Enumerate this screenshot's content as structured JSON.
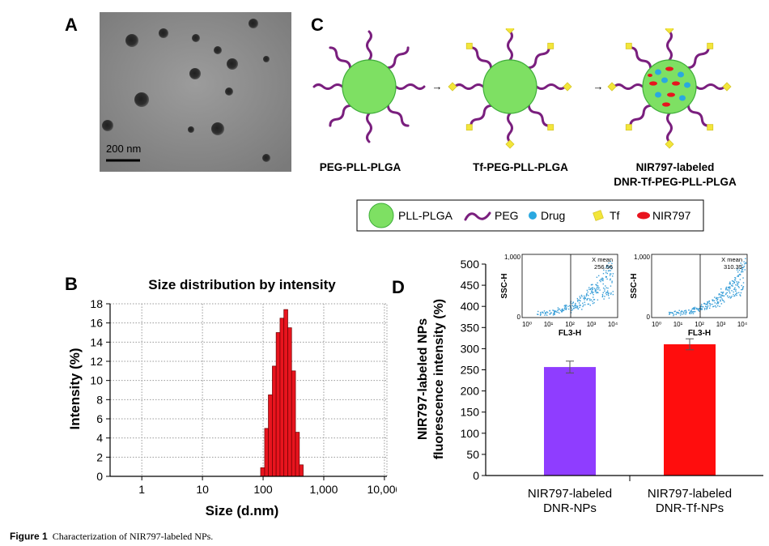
{
  "panels": {
    "a": "A",
    "b": "B",
    "c": "C",
    "d": "D"
  },
  "tem": {
    "scale_label": "200 nm"
  },
  "schematic": {
    "arrow": "→",
    "stages": [
      "PEG-PLL-PLGA",
      "Tf-PEG-PLL-PLGA",
      "NIR797-labeled",
      "DNR-Tf-PEG-PLL-PLGA"
    ],
    "legend": [
      "PLL-PLGA",
      "PEG",
      "Drug",
      "Tf",
      "NIR797"
    ],
    "colors": {
      "core": "#7ee063",
      "peg": "#7a1f7e",
      "drug": "#2aa8e0",
      "tf": "#f3e63a",
      "nir": "#e8141e"
    }
  },
  "chart_data": [
    {
      "type": "bar",
      "title": "Size distribution by intensity",
      "xlabel": "Size (d.nm)",
      "ylabel": "Intensity (%)",
      "xscale": "log",
      "xlim": [
        0.3,
        11000
      ],
      "ylim": [
        0,
        18
      ],
      "xticks": [
        1,
        10,
        100,
        1000,
        10000
      ],
      "xtick_labels": [
        "1",
        "10",
        "100",
        "1,000",
        "10,000"
      ],
      "yticks": [
        0,
        2,
        4,
        6,
        8,
        10,
        12,
        14,
        16,
        18
      ],
      "bins": [
        [
          91,
          106,
          0.9
        ],
        [
          106,
          122,
          5.0
        ],
        [
          122,
          142,
          8.5
        ],
        [
          142,
          164,
          11.5
        ],
        [
          164,
          190,
          15.0
        ],
        [
          190,
          220,
          16.5
        ],
        [
          220,
          255,
          17.4
        ],
        [
          255,
          295,
          15.5
        ],
        [
          295,
          342,
          11.0
        ],
        [
          342,
          396,
          4.6
        ],
        [
          396,
          458,
          1.2
        ]
      ],
      "color": "#e8141e"
    },
    {
      "type": "bar",
      "xlabel": "",
      "ylabel": "NIR797-labeled NPs fluorescence intensity (%)",
      "ylabel_lines": [
        "NIR797-labeled NPs",
        "fluorescence intensity (%)"
      ],
      "categories": [
        [
          "NIR797-labeled",
          "DNR-NPs"
        ],
        [
          "NIR797-labeled",
          "DNR-Tf-NPs"
        ]
      ],
      "values": [
        256.56,
        310.35
      ],
      "errors": [
        14,
        13
      ],
      "colors": [
        "#8f3dff",
        "#ff0d0d"
      ],
      "ylim": [
        0,
        500
      ],
      "yticks": [
        0,
        50,
        100,
        150,
        200,
        250,
        300,
        350,
        400,
        450,
        500
      ],
      "insets": [
        {
          "ylabel": "SSC-H",
          "xlabel": "FL3-H",
          "ytick_top": "1,000",
          "ytick_bottom": "0",
          "xticks": [
            "10⁰",
            "10¹",
            "10²",
            "10³",
            "10⁴"
          ],
          "mean_label": "X mean",
          "mean_value": "256.56"
        },
        {
          "ylabel": "SSC-H",
          "xlabel": "FL3-H",
          "ytick_top": "1,000",
          "ytick_bottom": "0",
          "xticks": [
            "10⁰",
            "10¹",
            "10²",
            "10³",
            "10⁴"
          ],
          "mean_label": "X mean",
          "mean_value": "310.35"
        }
      ]
    }
  ],
  "caption": {
    "label": "Figure 1",
    "text": "Characterization of NIR797-labeled NPs."
  }
}
